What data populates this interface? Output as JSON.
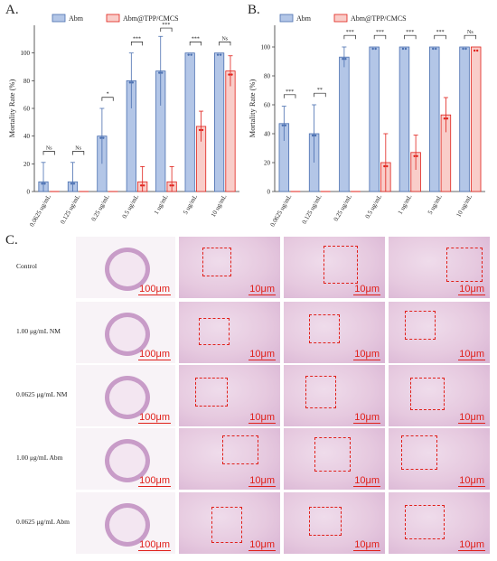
{
  "panels": {
    "a": "A.",
    "b": "B.",
    "c": "C."
  },
  "colors": {
    "abm_fill": "#b3c6e7",
    "abm_edge": "#4a6fb0",
    "tpp_fill": "#f9cdc9",
    "tpp_edge": "#e0201a",
    "scale_red": "#e0201a"
  },
  "chart_data": [
    {
      "type": "bar",
      "panel": "A.",
      "ylabel": "Mortality Rate (%)",
      "ylim": [
        0,
        120
      ],
      "yticks": [
        0,
        20,
        40,
        60,
        80,
        100
      ],
      "categories": [
        "0.0625 ug/mL",
        "0.125 ug/mL",
        "0.25 ug/mL",
        "0.5 ug/mL",
        "1 ug/mL",
        "5 ug/mL",
        "10 ug/mL"
      ],
      "series": [
        {
          "name": "Abm",
          "values": [
            7,
            7,
            40,
            80,
            87,
            100,
            100
          ],
          "errors": [
            14,
            14,
            20,
            20,
            25,
            0,
            0
          ]
        },
        {
          "name": "Abm@TPP/CMCS",
          "values": [
            0,
            0,
            0,
            7,
            7,
            47,
            87
          ],
          "errors": [
            0,
            0,
            0,
            11,
            11,
            11,
            11
          ]
        }
      ],
      "significance": [
        "Ns",
        "Ns",
        "*",
        "***",
        "***",
        "***",
        "Ns"
      ],
      "legend": "top-left"
    },
    {
      "type": "bar",
      "panel": "B.",
      "ylabel": "Mortality Rate (%)",
      "ylim": [
        0,
        115
      ],
      "yticks": [
        0,
        20,
        40,
        60,
        80,
        100
      ],
      "categories": [
        "0.0625 ug/mL",
        "0.125 ug/mL",
        "0.25 ug/mL",
        "0.5 ug/mL",
        "1 ug/mL",
        "5 ug/mL",
        "10 ug/mL"
      ],
      "series": [
        {
          "name": "Abm",
          "values": [
            47,
            40,
            93,
            100,
            100,
            100,
            100
          ],
          "errors": [
            12,
            20,
            7,
            0,
            0,
            0,
            0
          ]
        },
        {
          "name": "Abm@TPP/CMCS",
          "values": [
            0,
            0,
            0,
            20,
            27,
            53,
            100
          ],
          "errors": [
            0,
            0,
            0,
            20,
            12,
            12,
            0
          ]
        }
      ],
      "significance": [
        "***",
        "**",
        "***",
        "***",
        "***",
        "***",
        "Ns"
      ],
      "legend": "top"
    }
  ],
  "histology": {
    "rows": [
      "Control",
      "1.00 μg/mL  NM",
      "0.0625 μg/mL  NM",
      "1.00 μg/mL  Abm",
      "0.0625 μg/mL  Abm"
    ],
    "scale_low": "100μm",
    "scale_high": "10μm"
  }
}
